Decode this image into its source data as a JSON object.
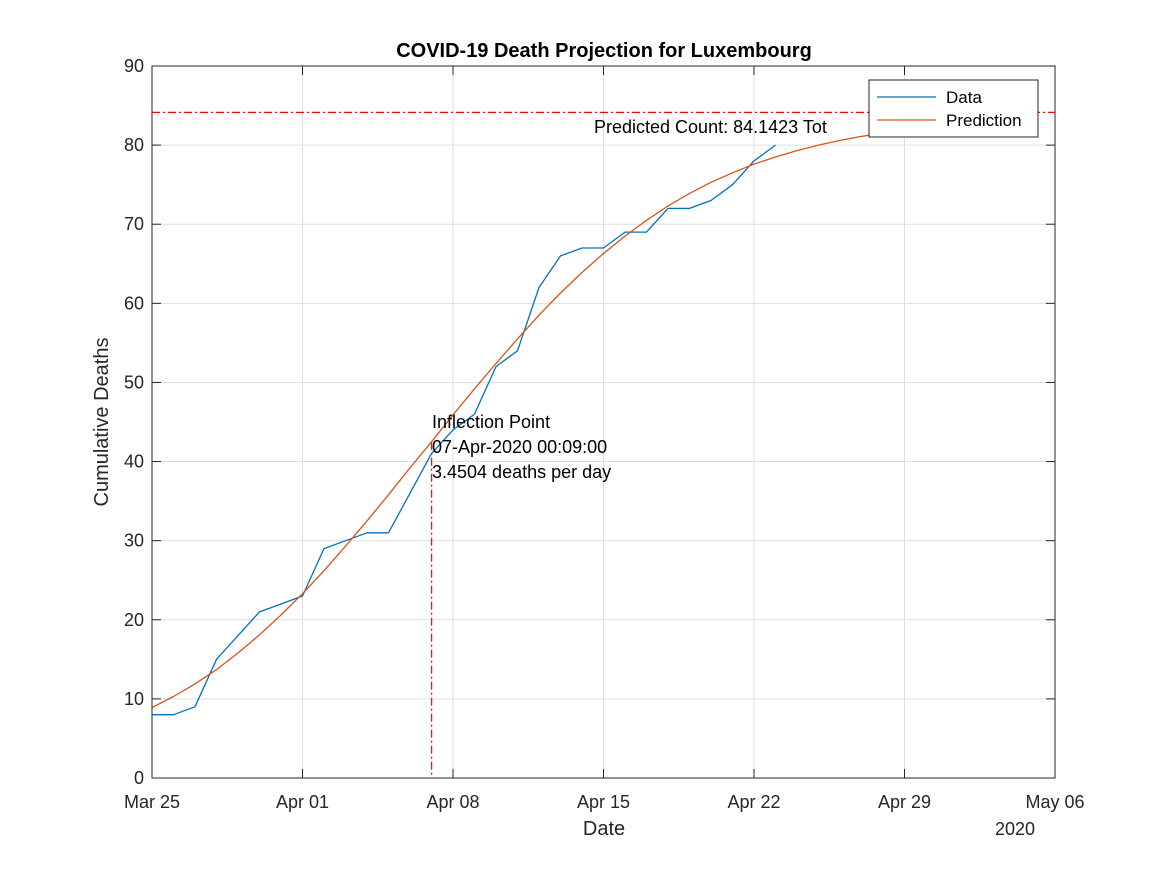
{
  "chart_data": {
    "type": "line",
    "title": "COVID-19 Death Projection for Luxembourg",
    "xlabel": "Date",
    "ylabel": "Cumulative Deaths",
    "x_tick_labels": [
      "Mar 25",
      "Apr 01",
      "Apr 08",
      "Apr 15",
      "Apr 22",
      "Apr 29",
      "May 06"
    ],
    "x_secondary_label": "2020",
    "x_range": [
      "2020-03-25",
      "2020-05-06"
    ],
    "ylim": [
      0,
      90
    ],
    "y_ticks": [
      0,
      10,
      20,
      30,
      40,
      50,
      60,
      70,
      80,
      90
    ],
    "grid": true,
    "legend_position": "top-right",
    "series": [
      {
        "name": "Data",
        "color": "#0072BD",
        "x": [
          "2020-03-25",
          "2020-03-26",
          "2020-03-27",
          "2020-03-28",
          "2020-03-29",
          "2020-03-30",
          "2020-03-31",
          "2020-04-01",
          "2020-04-02",
          "2020-04-03",
          "2020-04-04",
          "2020-04-05",
          "2020-04-06",
          "2020-04-07",
          "2020-04-08",
          "2020-04-09",
          "2020-04-10",
          "2020-04-11",
          "2020-04-12",
          "2020-04-13",
          "2020-04-14",
          "2020-04-15",
          "2020-04-16",
          "2020-04-17",
          "2020-04-18",
          "2020-04-19",
          "2020-04-20",
          "2020-04-21",
          "2020-04-22",
          "2020-04-23"
        ],
        "y": [
          8,
          8,
          9,
          15,
          18,
          21,
          22,
          23,
          29,
          30,
          31,
          31,
          36,
          41,
          44,
          46,
          52,
          54,
          62,
          66,
          67,
          67,
          69,
          69,
          72,
          72,
          73,
          75,
          78,
          80
        ]
      },
      {
        "name": "Prediction",
        "color": "#D95319",
        "x": [
          "2020-03-25",
          "2020-03-26",
          "2020-03-27",
          "2020-03-28",
          "2020-03-29",
          "2020-03-30",
          "2020-03-31",
          "2020-04-01",
          "2020-04-02",
          "2020-04-03",
          "2020-04-04",
          "2020-04-05",
          "2020-04-06",
          "2020-04-07",
          "2020-04-08",
          "2020-04-09",
          "2020-04-10",
          "2020-04-11",
          "2020-04-12",
          "2020-04-13",
          "2020-04-14",
          "2020-04-15",
          "2020-04-16",
          "2020-04-17",
          "2020-04-18",
          "2020-04-19",
          "2020-04-20",
          "2020-04-21",
          "2020-04-22",
          "2020-04-23",
          "2020-04-24",
          "2020-04-25",
          "2020-04-26",
          "2020-04-27",
          "2020-04-28",
          "2020-04-29"
        ],
        "y": [
          8.9,
          10.3,
          11.9,
          13.7,
          15.8,
          18.1,
          20.6,
          23.3,
          26.2,
          29.3,
          32.5,
          35.8,
          39.2,
          42.5,
          45.9,
          49.2,
          52.4,
          55.5,
          58.5,
          61.3,
          63.9,
          66.3,
          68.5,
          70.5,
          72.3,
          73.9,
          75.3,
          76.5,
          77.6,
          78.5,
          79.3,
          80.0,
          80.6,
          81.1,
          81.5,
          81.9
        ]
      }
    ],
    "annotations": {
      "predicted_count": {
        "value": 84.1423,
        "label": "Predicted Count: 84.1423 Tot",
        "color": "#FF0000"
      },
      "inflection": {
        "x": "2020-04-07T00:09:00",
        "lines": [
          "Inflection Point",
          "07-Apr-2020 00:09:00",
          "3.4504 deaths per day"
        ],
        "color": "#FF0000"
      }
    }
  }
}
